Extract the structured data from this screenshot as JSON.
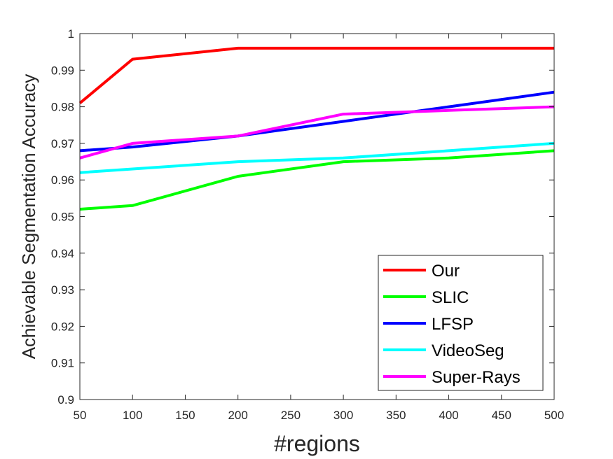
{
  "chart_data": {
    "type": "line",
    "title": "",
    "xlabel": "#regions",
    "ylabel": "Achievable Segmentation Accuracy",
    "xlim": [
      50,
      500
    ],
    "ylim": [
      0.9,
      1
    ],
    "xticks": [
      50,
      100,
      150,
      200,
      250,
      300,
      350,
      400,
      450,
      500
    ],
    "xtick_labels": [
      "50",
      "100",
      "150",
      "200",
      "250",
      "300",
      "350",
      "400",
      "450",
      "500"
    ],
    "yticks": [
      0.9,
      0.91,
      0.92,
      0.93,
      0.94,
      0.95,
      0.96,
      0.97,
      0.98,
      0.99,
      1
    ],
    "ytick_labels": [
      "0.9",
      "0.91",
      "0.92",
      "0.93",
      "0.94",
      "0.95",
      "0.96",
      "0.97",
      "0.98",
      "0.99",
      "1"
    ],
    "grid": false,
    "legend_position": "bottom-right",
    "x": [
      50,
      100,
      200,
      300,
      400,
      500
    ],
    "series": [
      {
        "name": "Our",
        "color": "#ff0000",
        "values": [
          0.981,
          0.993,
          0.996,
          0.996,
          0.996,
          0.996
        ]
      },
      {
        "name": "SLIC",
        "color": "#00ff00",
        "values": [
          0.952,
          0.953,
          0.961,
          0.965,
          0.966,
          0.968
        ]
      },
      {
        "name": "LFSP",
        "color": "#0000ff",
        "values": [
          0.968,
          0.969,
          0.972,
          0.976,
          0.98,
          0.984
        ]
      },
      {
        "name": "VideoSeg",
        "color": "#00ffff",
        "values": [
          0.962,
          0.963,
          0.965,
          0.966,
          0.968,
          0.97
        ]
      },
      {
        "name": "Super-Rays",
        "color": "#ff00ff",
        "values": [
          0.966,
          0.97,
          0.972,
          0.978,
          0.979,
          0.98
        ]
      }
    ]
  }
}
